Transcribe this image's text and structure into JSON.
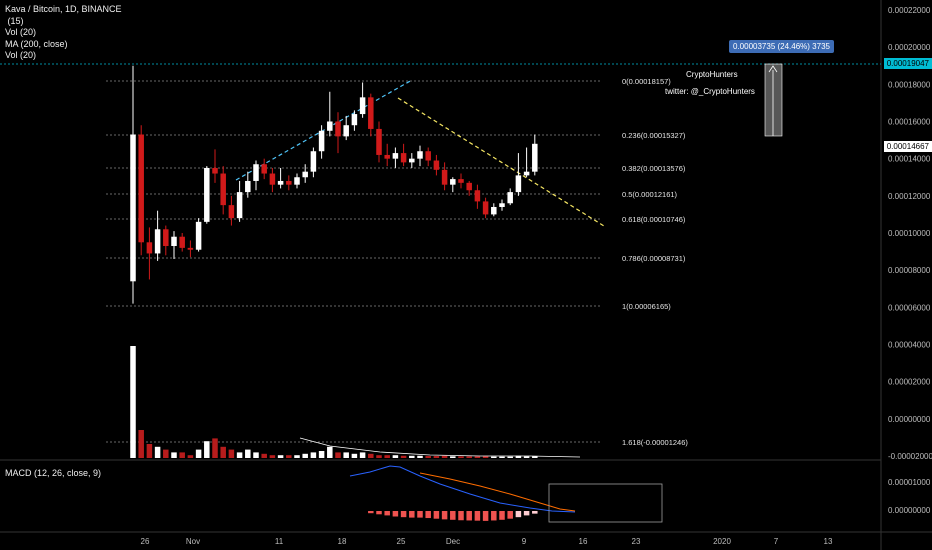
{
  "header": {
    "symbol_line": "Kava / Bitcoin, 1D, BINANCE",
    "indicator_1": " (15)",
    "indicator_2": "Vol (20)",
    "indicator_3": "MA (200, close)",
    "indicator_4": "Vol (20)"
  },
  "macd_label": "MACD (12, 26, close, 9)",
  "measure_label": "0.00003735 (24.46%) 3735",
  "watermark": {
    "line1": "CryptoHunters",
    "line2": "twitter: @_CryptoHunters"
  },
  "price_badges": {
    "current": "0.00014667",
    "top": "0.00019047"
  },
  "colors": {
    "up": "#ffffff",
    "down": "#d11a1a",
    "volume_down": "#b71c1c",
    "badge_top": "#00bcd4",
    "fib_line": "#8a8a8a",
    "trend_up": "#4fc3f7",
    "trend_down": "#f5e663",
    "macd_line": "#2962ff",
    "signal_line": "#ff6d00",
    "measure": "#3d6cb5"
  },
  "chart_data": {
    "type": "candlestick",
    "price_axis": {
      "ticks": [
        "0.00022000",
        "0.00020000",
        "0.00018000",
        "0.00016000",
        "0.00014000",
        "0.00012000",
        "0.00010000",
        "0.00008000",
        "0.00006000",
        "0.00004000",
        "0.00002000",
        "0.00000000",
        "-0.00002000"
      ]
    },
    "macd_axis": {
      "ticks": [
        "0.00001000",
        "0.00000000"
      ]
    },
    "x_axis": {
      "ticks": [
        "26",
        "Nov",
        "11",
        "18",
        "25",
        "Dec",
        "9",
        "16",
        "23",
        "2020",
        "7",
        "13"
      ]
    },
    "fibonacci": [
      {
        "ratio": "0",
        "value": "0.00018157"
      },
      {
        "ratio": "0.236",
        "value": "0.00015327"
      },
      {
        "ratio": "0.382",
        "value": "0.00013576"
      },
      {
        "ratio": "0.5",
        "value": "0.00012161"
      },
      {
        "ratio": "0.618",
        "value": "0.00010746"
      },
      {
        "ratio": "0.786",
        "value": "0.00008731"
      },
      {
        "ratio": "1",
        "value": "0.00006165"
      },
      {
        "ratio": "1.618",
        "value": "-0.00001246"
      }
    ],
    "candles": [
      {
        "o": 7.4,
        "h": 19.0,
        "l": 6.2,
        "c": 15.3
      },
      {
        "o": 15.3,
        "h": 15.8,
        "l": 8.8,
        "c": 9.5
      },
      {
        "o": 9.5,
        "h": 10.3,
        "l": 7.5,
        "c": 8.9
      },
      {
        "o": 8.9,
        "h": 11.2,
        "l": 8.5,
        "c": 10.2
      },
      {
        "o": 10.2,
        "h": 10.4,
        "l": 8.8,
        "c": 9.3
      },
      {
        "o": 9.3,
        "h": 10.1,
        "l": 8.6,
        "c": 9.8
      },
      {
        "o": 9.8,
        "h": 10.0,
        "l": 9.0,
        "c": 9.2
      },
      {
        "o": 9.2,
        "h": 9.6,
        "l": 8.7,
        "c": 9.1
      },
      {
        "o": 9.1,
        "h": 10.8,
        "l": 9.0,
        "c": 10.6
      },
      {
        "o": 10.6,
        "h": 13.6,
        "l": 10.5,
        "c": 13.5
      },
      {
        "o": 13.5,
        "h": 14.5,
        "l": 12.7,
        "c": 13.2
      },
      {
        "o": 13.2,
        "h": 13.6,
        "l": 11.0,
        "c": 11.5
      },
      {
        "o": 11.5,
        "h": 12.0,
        "l": 10.4,
        "c": 10.8
      },
      {
        "o": 10.8,
        "h": 12.8,
        "l": 10.6,
        "c": 12.2
      },
      {
        "o": 12.2,
        "h": 13.3,
        "l": 11.9,
        "c": 12.8
      },
      {
        "o": 12.8,
        "h": 13.9,
        "l": 12.3,
        "c": 13.7
      },
      {
        "o": 13.7,
        "h": 14.0,
        "l": 12.9,
        "c": 13.2
      },
      {
        "o": 13.2,
        "h": 13.5,
        "l": 12.2,
        "c": 12.6
      },
      {
        "o": 12.6,
        "h": 13.5,
        "l": 12.4,
        "c": 12.8
      },
      {
        "o": 12.8,
        "h": 13.1,
        "l": 12.3,
        "c": 12.6
      },
      {
        "o": 12.6,
        "h": 13.2,
        "l": 12.4,
        "c": 13.0
      },
      {
        "o": 13.0,
        "h": 13.7,
        "l": 12.7,
        "c": 13.3
      },
      {
        "o": 13.3,
        "h": 14.6,
        "l": 13.0,
        "c": 14.4
      },
      {
        "o": 14.4,
        "h": 15.8,
        "l": 14.0,
        "c": 15.5
      },
      {
        "o": 15.5,
        "h": 17.6,
        "l": 15.2,
        "c": 16.0
      },
      {
        "o": 16.0,
        "h": 16.5,
        "l": 14.3,
        "c": 15.2
      },
      {
        "o": 15.2,
        "h": 16.3,
        "l": 15.0,
        "c": 15.8
      },
      {
        "o": 15.8,
        "h": 16.6,
        "l": 15.5,
        "c": 16.4
      },
      {
        "o": 16.4,
        "h": 18.1,
        "l": 16.2,
        "c": 17.3
      },
      {
        "o": 17.3,
        "h": 17.5,
        "l": 15.2,
        "c": 15.6
      },
      {
        "o": 15.6,
        "h": 16.0,
        "l": 13.8,
        "c": 14.2
      },
      {
        "o": 14.2,
        "h": 14.8,
        "l": 13.6,
        "c": 14.0
      },
      {
        "o": 14.0,
        "h": 14.6,
        "l": 13.5,
        "c": 14.3
      },
      {
        "o": 14.3,
        "h": 14.8,
        "l": 13.6,
        "c": 13.8
      },
      {
        "o": 13.8,
        "h": 14.3,
        "l": 13.5,
        "c": 14.0
      },
      {
        "o": 14.0,
        "h": 14.7,
        "l": 13.6,
        "c": 14.4
      },
      {
        "o": 14.4,
        "h": 14.6,
        "l": 13.6,
        "c": 13.9
      },
      {
        "o": 13.9,
        "h": 14.2,
        "l": 13.1,
        "c": 13.4
      },
      {
        "o": 13.4,
        "h": 13.8,
        "l": 12.3,
        "c": 12.6
      },
      {
        "o": 12.6,
        "h": 13.0,
        "l": 12.2,
        "c": 12.9
      },
      {
        "o": 12.9,
        "h": 13.2,
        "l": 12.4,
        "c": 12.7
      },
      {
        "o": 12.7,
        "h": 12.8,
        "l": 12.0,
        "c": 12.3
      },
      {
        "o": 12.3,
        "h": 12.6,
        "l": 11.3,
        "c": 11.7
      },
      {
        "o": 11.7,
        "h": 11.9,
        "l": 10.8,
        "c": 11.0
      },
      {
        "o": 11.0,
        "h": 11.6,
        "l": 10.9,
        "c": 11.4
      },
      {
        "o": 11.4,
        "h": 11.8,
        "l": 11.2,
        "c": 11.6
      },
      {
        "o": 11.6,
        "h": 12.4,
        "l": 11.5,
        "c": 12.2
      },
      {
        "o": 12.2,
        "h": 14.3,
        "l": 12.0,
        "c": 13.1
      },
      {
        "o": 13.1,
        "h": 14.6,
        "l": 13.0,
        "c": 13.3
      },
      {
        "o": 13.3,
        "h": 15.3,
        "l": 13.1,
        "c": 14.8
      }
    ],
    "volume": [
      40,
      10,
      5,
      4,
      3,
      2,
      2,
      1,
      3,
      6,
      7,
      4,
      3,
      2,
      3,
      2,
      1.5,
      1,
      1,
      1,
      1,
      1.5,
      2,
      2.5,
      4,
      2,
      2,
      1.5,
      2,
      1.5,
      1,
      1,
      1,
      0.8,
      0.8,
      0.8,
      0.7,
      0.7,
      0.8,
      0.6,
      0.6,
      0.6,
      0.6,
      0.7,
      0.5,
      0.5,
      0.5,
      0.8,
      0.6,
      0.6
    ],
    "macd_hist": [
      0,
      0,
      0,
      0,
      0,
      0,
      0,
      0,
      0,
      0,
      0,
      0,
      0,
      0,
      0,
      0,
      0,
      0,
      0,
      0,
      0,
      0,
      0,
      0,
      0,
      0,
      0,
      0,
      0,
      -0.1,
      -0.15,
      -0.2,
      -0.25,
      -0.28,
      -0.3,
      -0.3,
      -0.32,
      -0.35,
      -0.38,
      -0.4,
      -0.42,
      -0.43,
      -0.44,
      -0.45,
      -0.43,
      -0.4,
      -0.35,
      -0.28,
      -0.2,
      -0.12
    ]
  }
}
